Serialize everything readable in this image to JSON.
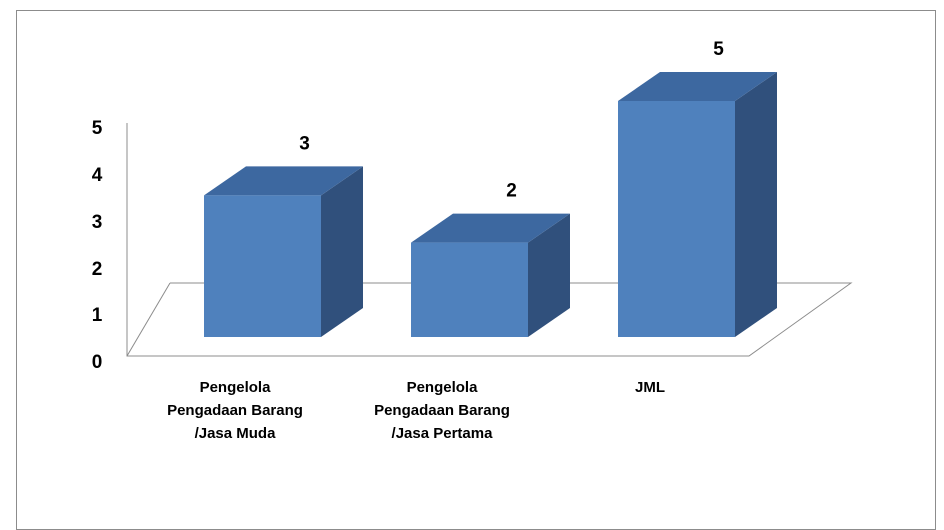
{
  "chart_data": {
    "type": "bar",
    "style": "3d-column",
    "categories": [
      [
        "Pengelola",
        "Pengadaan Barang",
        "/Jasa Muda"
      ],
      [
        "Pengelola",
        "Pengadaan Barang",
        "/Jasa Pertama"
      ],
      [
        "JML"
      ]
    ],
    "values": [
      3,
      2,
      5
    ],
    "data_labels": [
      "3",
      "2",
      "5"
    ],
    "y_ticks": [
      "0",
      "1",
      "2",
      "3",
      "4",
      "5"
    ],
    "ylim": [
      0,
      5
    ],
    "grid": false,
    "legend": "none",
    "colors": {
      "bar_front": "#4f81bd",
      "bar_top": "#3d68a0",
      "bar_side": "#30507c",
      "floor_line": "#8c8c8c",
      "frame": "#8c8c8c"
    }
  }
}
